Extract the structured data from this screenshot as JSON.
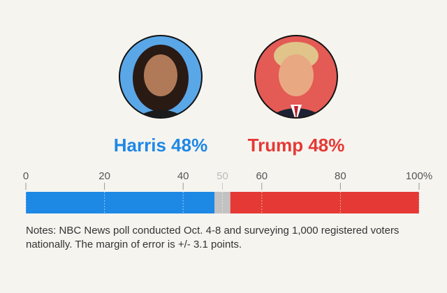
{
  "chart_data": {
    "type": "stacked-bar",
    "series": [
      {
        "name": "Harris",
        "color": "#1e88e5",
        "values": [
          48
        ],
        "value_labels": [
          "48%"
        ]
      },
      {
        "color": "#c2c2c2",
        "values": [
          4
        ]
      },
      {
        "name": "Trump",
        "color": "#e53935",
        "values": [
          48
        ],
        "value_labels": [
          "48%"
        ]
      }
    ],
    "xlim": [
      0,
      100
    ],
    "xticks": [
      0,
      20,
      40,
      50,
      60,
      80,
      {
        "value": 100,
        "label": "100%"
      }
    ],
    "grid": true,
    "notes": [
      "Notes: NBC News poll conducted Oct. 4-8 and surveying 1,000 registered voters",
      "nationally. The margin of error is +/- 3.1 points."
    ]
  }
}
